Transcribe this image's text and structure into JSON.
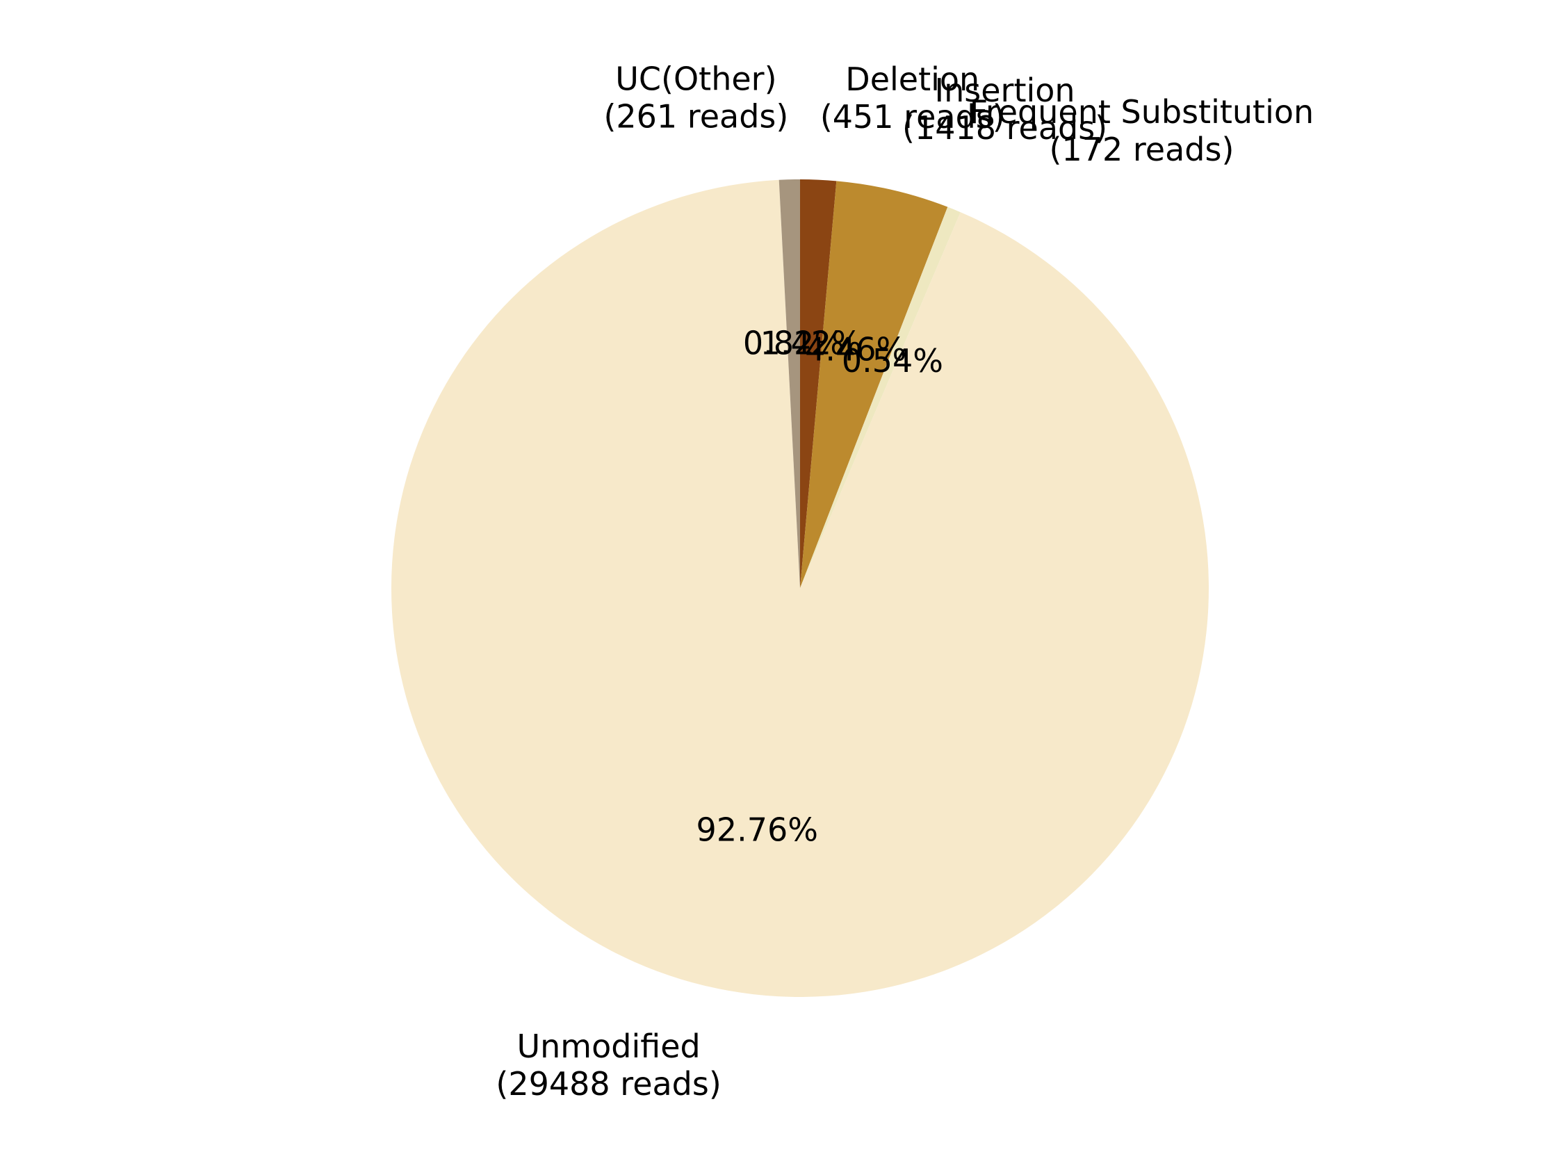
{
  "chart_data": {
    "type": "pie",
    "title": "",
    "start_angle_deg": 90,
    "direction": "clockwise",
    "slices": [
      {
        "name": "Deletion",
        "reads": 451,
        "percent_label": "1.42%",
        "label": "Deletion",
        "reads_label": "(451 reads)",
        "color": "#8B4513"
      },
      {
        "name": "Insertion",
        "reads": 1418,
        "percent_label": "4.46%",
        "label": "Insertion",
        "reads_label": "(1418 reads)",
        "color": "#BC8A2E"
      },
      {
        "name": "Frequent Substitution",
        "reads": 172,
        "percent_label": "0.54%",
        "label": "Frequent Substitution",
        "reads_label": "(172 reads)",
        "color": "#EEE8C0"
      },
      {
        "name": "Unmodified",
        "reads": 29488,
        "percent_label": "92.76%",
        "label": "Unmodified",
        "reads_label": "(29488 reads)",
        "color": "#F7E9CA"
      },
      {
        "name": "UC(Other)",
        "reads": 261,
        "percent_label": "0.82%",
        "label": "UC(Other)",
        "reads_label": "(261 reads)",
        "color": "#A6957E"
      }
    ]
  }
}
